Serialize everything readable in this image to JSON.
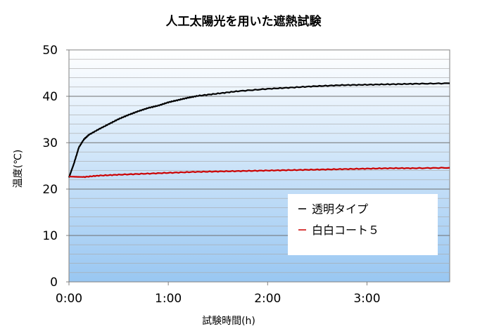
{
  "chart_data": {
    "type": "line",
    "title": "人工太陽光を用いた遮熱試験",
    "xlabel": "試験時間(h)",
    "ylabel": "温度(℃)",
    "xlim": [
      0,
      3.833
    ],
    "ylim": [
      0,
      50
    ],
    "x_unit": "hours",
    "x_ticks": [
      {
        "value": 0,
        "label": "0:00"
      },
      {
        "value": 1,
        "label": "1:00"
      },
      {
        "value": 2,
        "label": "2:00"
      },
      {
        "value": 3,
        "label": "3:00"
      }
    ],
    "y_ticks": [
      {
        "value": 0,
        "label": "0"
      },
      {
        "value": 10,
        "label": "10"
      },
      {
        "value": 20,
        "label": "20"
      },
      {
        "value": 30,
        "label": "30"
      },
      {
        "value": 40,
        "label": "40"
      },
      {
        "value": 50,
        "label": "50"
      }
    ],
    "grid": "horizontal-minor",
    "background": "gradient white-to-light-blue",
    "legend_position": "center-right",
    "series": [
      {
        "name": "透明タイプ",
        "color": "#000000",
        "points": [
          [
            0,
            22.5
          ],
          [
            0.05,
            25.5
          ],
          [
            0.1,
            29.0
          ],
          [
            0.15,
            30.7
          ],
          [
            0.2,
            31.7
          ],
          [
            0.3,
            32.9
          ],
          [
            0.4,
            34.0
          ],
          [
            0.5,
            35.1
          ],
          [
            0.6,
            36.0
          ],
          [
            0.7,
            36.8
          ],
          [
            0.8,
            37.5
          ],
          [
            0.9,
            38.0
          ],
          [
            1.0,
            38.7
          ],
          [
            1.1,
            39.2
          ],
          [
            1.2,
            39.7
          ],
          [
            1.3,
            40.1
          ],
          [
            1.5,
            40.6
          ],
          [
            1.7,
            41.1
          ],
          [
            2.0,
            41.6
          ],
          [
            2.25,
            41.9
          ],
          [
            2.5,
            42.2
          ],
          [
            2.75,
            42.4
          ],
          [
            3.0,
            42.5
          ],
          [
            3.25,
            42.6
          ],
          [
            3.5,
            42.7
          ],
          [
            3.833,
            42.8
          ]
        ]
      },
      {
        "name": "白白コート５",
        "color": "#cc0000",
        "points": [
          [
            0,
            22.7
          ],
          [
            0.15,
            22.6
          ],
          [
            0.3,
            22.9
          ],
          [
            0.5,
            23.1
          ],
          [
            0.75,
            23.3
          ],
          [
            1.0,
            23.5
          ],
          [
            1.25,
            23.7
          ],
          [
            1.5,
            23.8
          ],
          [
            1.75,
            23.9
          ],
          [
            2.0,
            24.0
          ],
          [
            2.25,
            24.1
          ],
          [
            2.5,
            24.2
          ],
          [
            2.75,
            24.3
          ],
          [
            3.0,
            24.4
          ],
          [
            3.25,
            24.5
          ],
          [
            3.5,
            24.5
          ],
          [
            3.833,
            24.6
          ]
        ]
      }
    ]
  }
}
